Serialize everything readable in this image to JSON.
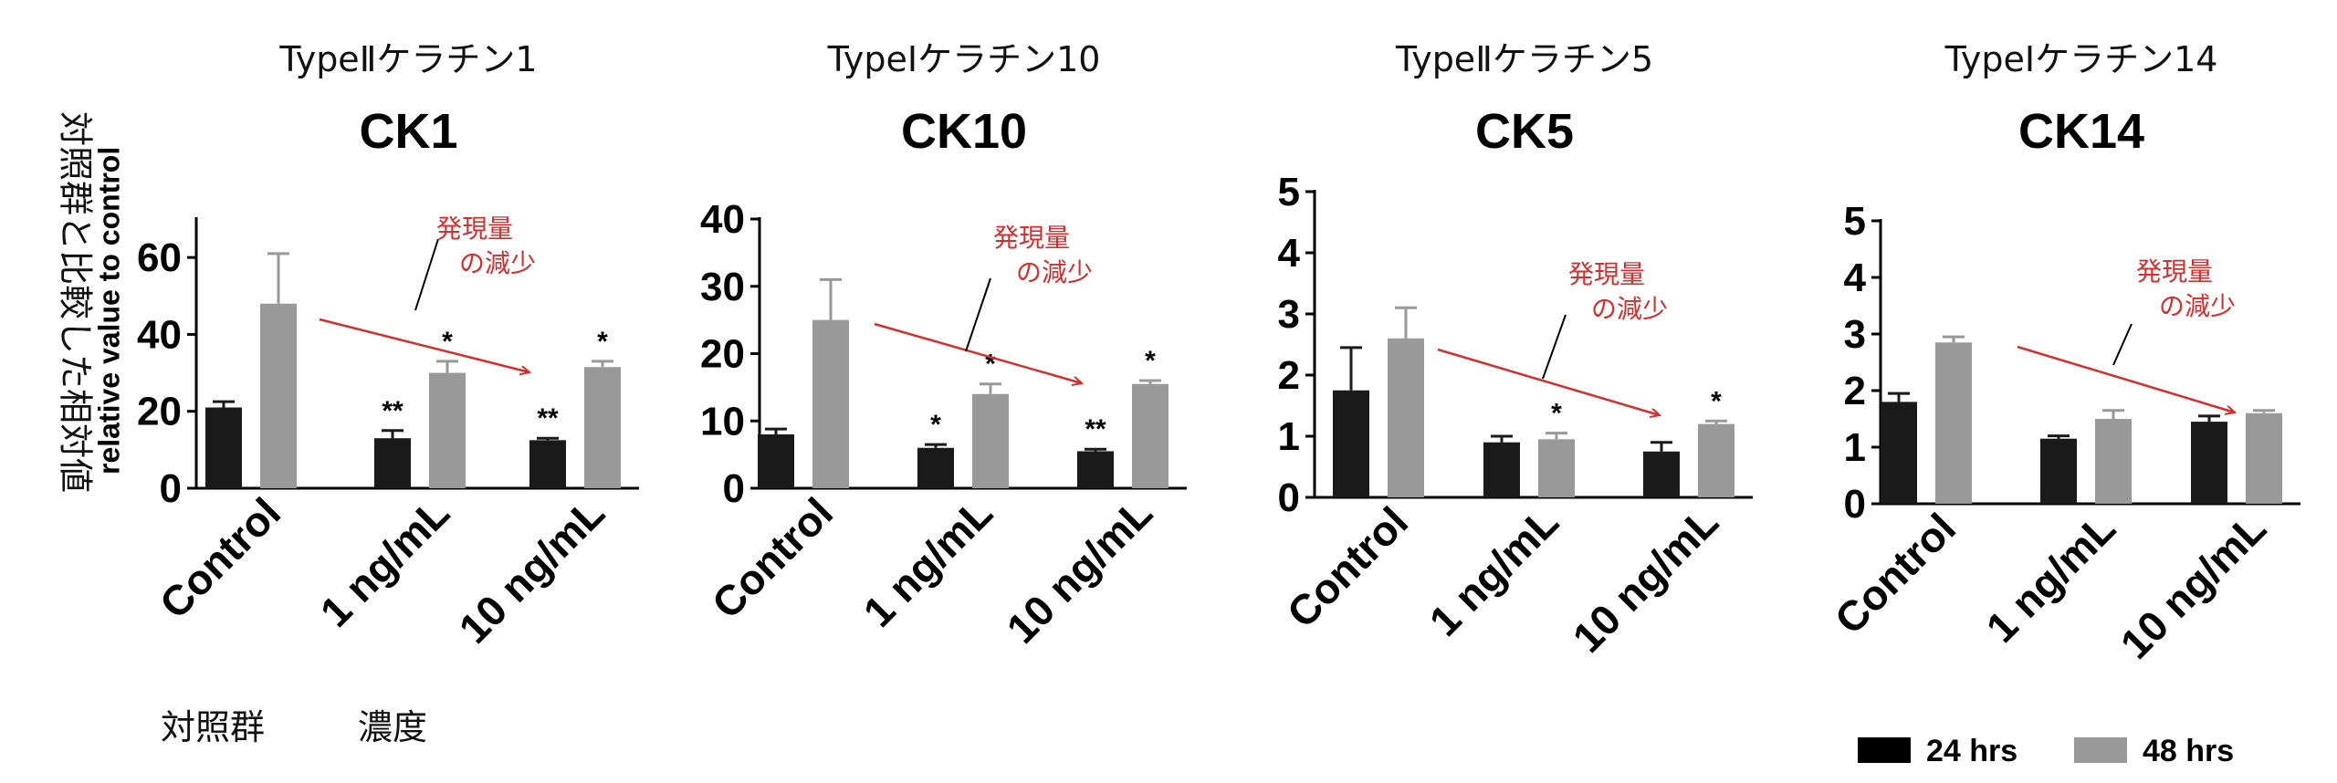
{
  "figure": {
    "y_axis_label_ja": "対照群と比較した相対値",
    "y_axis_label_en": "relative value to control",
    "bottom_labels": {
      "control": "対照群",
      "concentration": "濃度"
    },
    "legend": [
      {
        "label": "24 hrs",
        "color": "#000000"
      },
      {
        "label": "48 hrs",
        "color": "#999999"
      }
    ],
    "annotation_text_line1": "発現量",
    "annotation_text_line2": "の減少",
    "annotation_color": "#d32f2f"
  },
  "chart_data": [
    {
      "type": "bar",
      "subtitle_ja": "TypeⅡケラチン1",
      "title": "CK1",
      "categories": [
        "Control",
        "1 ng/mL",
        "10 ng/mL"
      ],
      "ylim": [
        0,
        70
      ],
      "yticks": [
        0,
        20,
        40,
        60
      ],
      "series": [
        {
          "name": "24 hrs",
          "values": [
            21,
            13,
            12.5
          ],
          "errors": [
            1.5,
            2,
            0.5
          ],
          "marks": [
            "",
            "**",
            "**"
          ]
        },
        {
          "name": "48 hrs",
          "values": [
            48,
            30,
            31.5
          ],
          "errors": [
            13,
            3,
            1.5
          ],
          "marks": [
            "",
            "*",
            "*"
          ]
        }
      ]
    },
    {
      "type": "bar",
      "subtitle_ja": "TypeⅠケラチン10",
      "title": "CK10",
      "categories": [
        "Control",
        "1 ng/mL",
        "10 ng/mL"
      ],
      "ylim": [
        0,
        40
      ],
      "yticks": [
        0,
        10,
        20,
        30,
        40
      ],
      "series": [
        {
          "name": "24 hrs",
          "values": [
            8,
            6,
            5.5
          ],
          "errors": [
            0.8,
            0.5,
            0.3
          ],
          "marks": [
            "",
            "*",
            "**"
          ]
        },
        {
          "name": "48 hrs",
          "values": [
            25,
            14,
            15.5
          ],
          "errors": [
            6,
            1.5,
            0.5
          ],
          "marks": [
            "",
            "*",
            "*"
          ]
        }
      ]
    },
    {
      "type": "bar",
      "subtitle_ja": "TypeⅡケラチン5",
      "title": "CK5",
      "categories": [
        "Control",
        "1 ng/mL",
        "10 ng/mL"
      ],
      "ylim": [
        0,
        5
      ],
      "yticks": [
        0,
        1,
        2,
        3,
        4,
        5
      ],
      "series": [
        {
          "name": "24 hrs",
          "values": [
            1.75,
            0.9,
            0.75
          ],
          "errors": [
            0.7,
            0.1,
            0.15
          ],
          "marks": [
            "",
            "",
            ""
          ]
        },
        {
          "name": "48 hrs",
          "values": [
            2.6,
            0.95,
            1.2
          ],
          "errors": [
            0.5,
            0.1,
            0.05
          ],
          "marks": [
            "",
            "*",
            "*"
          ]
        }
      ]
    },
    {
      "type": "bar",
      "subtitle_ja": "TypeⅠケラチン14",
      "title": "CK14",
      "categories": [
        "Control",
        "1 ng/mL",
        "10 ng/mL"
      ],
      "ylim": [
        0,
        5
      ],
      "yticks": [
        0,
        1,
        2,
        3,
        4,
        5
      ],
      "series": [
        {
          "name": "24 hrs",
          "values": [
            1.8,
            1.15,
            1.45
          ],
          "errors": [
            0.15,
            0.05,
            0.1
          ],
          "marks": [
            "",
            "",
            ""
          ]
        },
        {
          "name": "48 hrs",
          "values": [
            2.85,
            1.5,
            1.6
          ],
          "errors": [
            0.1,
            0.15,
            0.05
          ],
          "marks": [
            "",
            "",
            ""
          ]
        }
      ]
    }
  ]
}
